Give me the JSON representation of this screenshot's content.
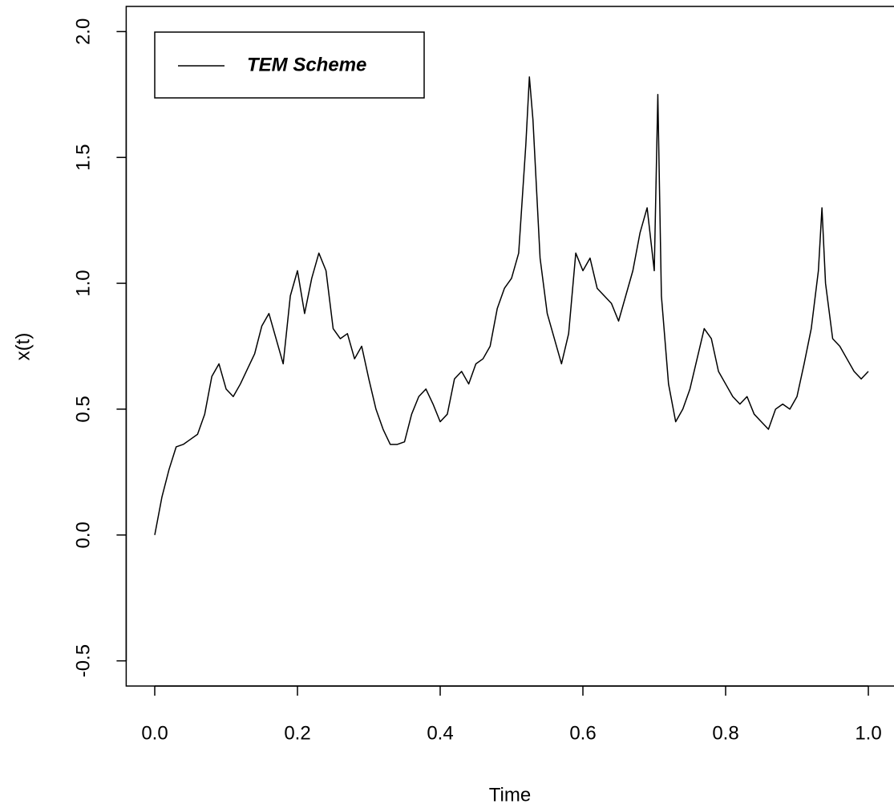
{
  "chart_data": {
    "type": "line",
    "x_label": "Time",
    "y_label": "x(t)",
    "x": [
      0,
      0.01,
      0.02,
      0.03,
      0.04,
      0.05,
      0.06,
      0.07,
      0.08,
      0.09,
      0.1,
      0.11,
      0.12,
      0.13,
      0.14,
      0.15,
      0.16,
      0.17,
      0.18,
      0.19,
      0.2,
      0.21,
      0.22,
      0.23,
      0.24,
      0.25,
      0.26,
      0.27,
      0.28,
      0.29,
      0.3,
      0.31,
      0.32,
      0.33,
      0.34,
      0.35,
      0.36,
      0.37,
      0.38,
      0.39,
      0.4,
      0.41,
      0.42,
      0.43,
      0.44,
      0.45,
      0.46,
      0.47,
      0.48,
      0.49,
      0.5,
      0.51,
      0.52,
      0.525,
      0.53,
      0.54,
      0.55,
      0.56,
      0.57,
      0.58,
      0.59,
      0.6,
      0.61,
      0.62,
      0.63,
      0.64,
      0.65,
      0.66,
      0.67,
      0.68,
      0.69,
      0.7,
      0.705,
      0.71,
      0.72,
      0.73,
      0.74,
      0.75,
      0.76,
      0.77,
      0.78,
      0.79,
      0.8,
      0.81,
      0.82,
      0.83,
      0.84,
      0.85,
      0.86,
      0.87,
      0.88,
      0.89,
      0.9,
      0.91,
      0.92,
      0.93,
      0.935,
      0.94,
      0.95,
      0.96,
      0.97,
      0.98,
      0.99,
      1.0
    ],
    "series": [
      {
        "name": "TEM Scheme",
        "color": "#000000",
        "values": [
          0,
          0.15,
          0.26,
          0.35,
          0.36,
          0.38,
          0.4,
          0.48,
          0.63,
          0.68,
          0.58,
          0.55,
          0.6,
          0.66,
          0.72,
          0.83,
          0.88,
          0.78,
          0.68,
          0.95,
          1.05,
          0.88,
          1.02,
          1.12,
          1.05,
          0.82,
          0.78,
          0.8,
          0.7,
          0.75,
          0.62,
          0.5,
          0.42,
          0.36,
          0.36,
          0.37,
          0.48,
          0.55,
          0.58,
          0.52,
          0.45,
          0.48,
          0.62,
          0.65,
          0.6,
          0.68,
          0.7,
          0.75,
          0.9,
          0.98,
          1.02,
          1.12,
          1.55,
          1.82,
          1.65,
          1.1,
          0.88,
          0.78,
          0.68,
          0.8,
          1.12,
          1.05,
          1.1,
          0.98,
          0.95,
          0.92,
          0.85,
          0.95,
          1.05,
          1.2,
          1.3,
          1.05,
          1.75,
          0.95,
          0.6,
          0.45,
          0.5,
          0.58,
          0.7,
          0.82,
          0.78,
          0.65,
          0.6,
          0.55,
          0.52,
          0.55,
          0.48,
          0.45,
          0.42,
          0.5,
          0.52,
          0.5,
          0.55,
          0.68,
          0.82,
          1.05,
          1.3,
          1.0,
          0.78,
          0.75,
          0.7,
          0.65,
          0.62,
          0.65
        ]
      }
    ],
    "xlim": [
      -0.04,
      1.04
    ],
    "ylim": [
      -0.6,
      2.1
    ],
    "xticks": [
      {
        "value": 0,
        "label": "0.0"
      },
      0.2,
      0.4,
      0.6,
      0.8,
      {
        "value": 1,
        "label": "1.0"
      }
    ],
    "yticks": [
      -0.5,
      {
        "value": 0,
        "label": "0.0"
      },
      0.5,
      {
        "value": 1,
        "label": "1.0"
      },
      1.5,
      {
        "value": 2,
        "label": "2.0"
      }
    ],
    "grid": false,
    "legend": "topleft"
  }
}
